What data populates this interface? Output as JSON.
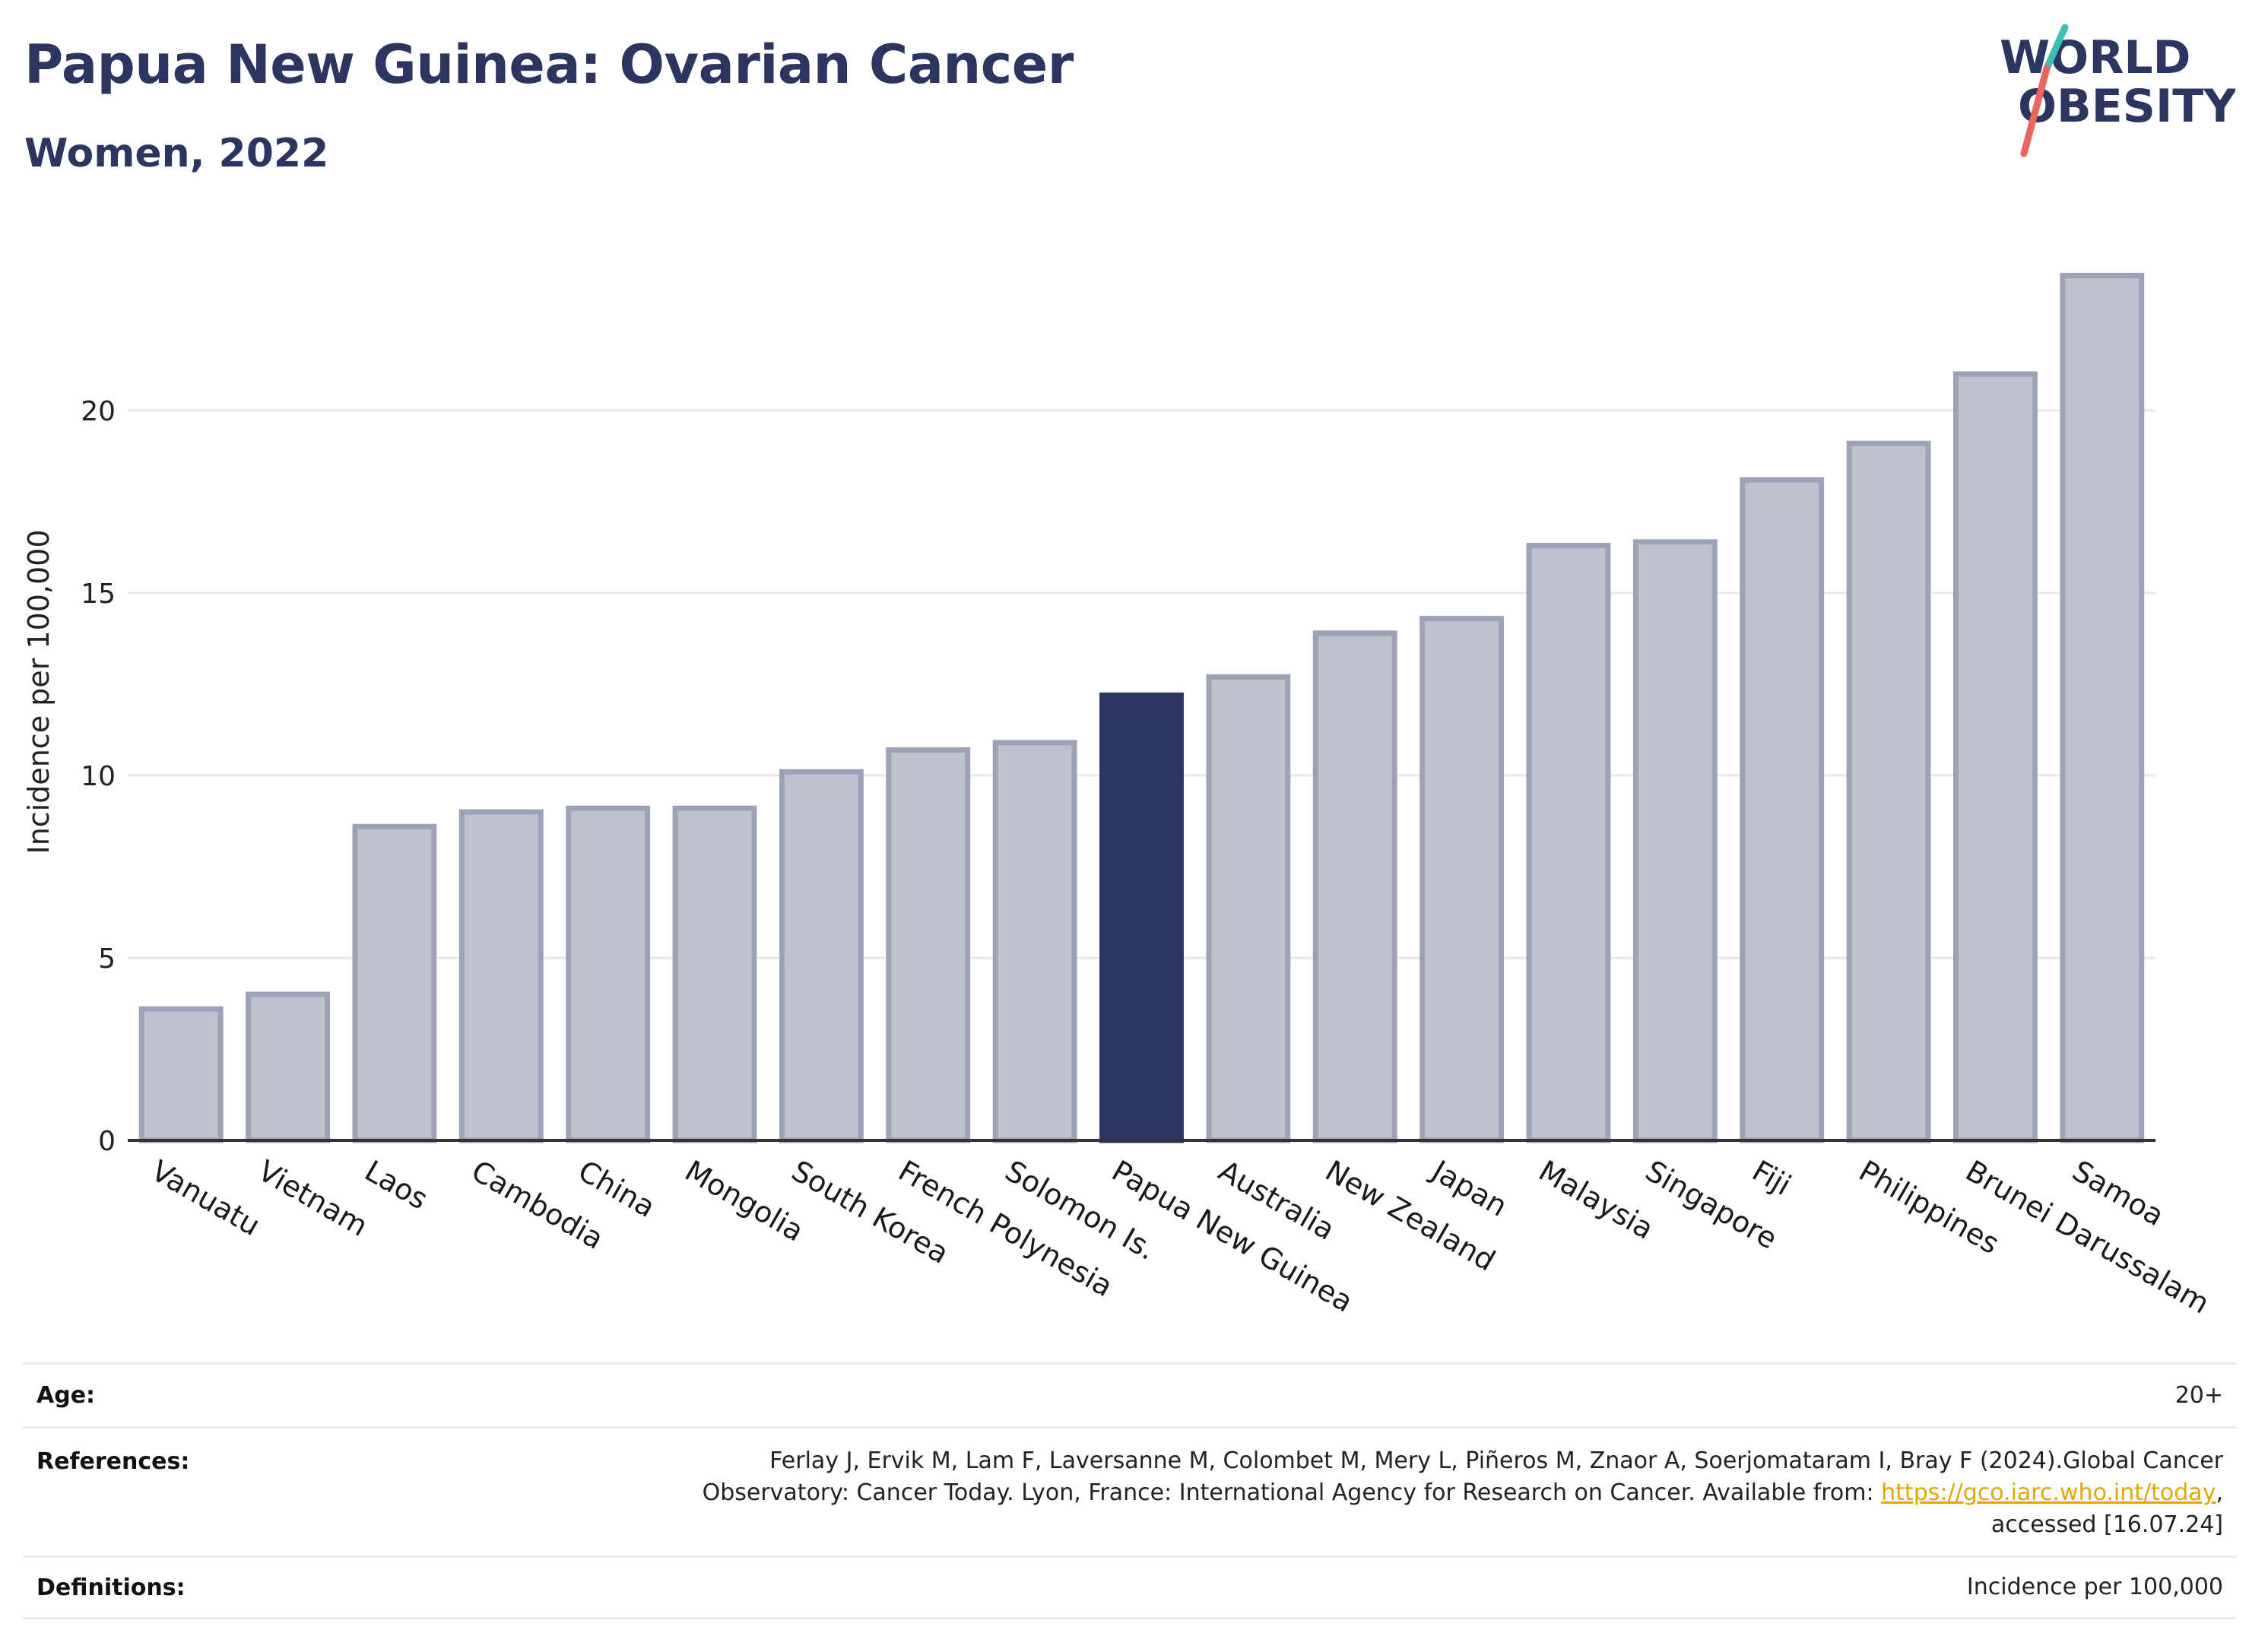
{
  "header": {
    "title": "Papua New Guinea: Ovarian Cancer",
    "subtitle": "Women, 2022"
  },
  "logo": {
    "line1": "WORLD",
    "line2": "OBESITY",
    "text_color": "#2b3560",
    "slash_colors": [
      "#3fbfb0",
      "#e8665a"
    ]
  },
  "chart_data": {
    "type": "bar",
    "categories": [
      "Vanuatu",
      "Vietnam",
      "Laos",
      "Cambodia",
      "China",
      "Mongolia",
      "South Korea",
      "French Polynesia",
      "Solomon Is.",
      "Papua New Guinea",
      "Australia",
      "New Zealand",
      "Japan",
      "Malaysia",
      "Singapore",
      "Fiji",
      "Philippines",
      "Brunei Darussalam",
      "Samoa"
    ],
    "values": [
      3.6,
      4.0,
      8.6,
      9.0,
      9.1,
      9.1,
      10.1,
      10.7,
      10.9,
      12.2,
      12.7,
      13.9,
      14.3,
      16.3,
      16.4,
      18.1,
      19.1,
      21.0,
      23.7
    ],
    "highlight": "Papua New Guinea",
    "ylabel": "Incidence per 100,000",
    "xlabel": "",
    "ylim": [
      0,
      25
    ],
    "yticks": [
      0,
      5,
      10,
      15,
      20
    ],
    "grid": true,
    "colors": {
      "bar_fill": "#bec1ce",
      "bar_stroke": "#9da2b7",
      "highlight": "#2b3560",
      "grid": "#e6e8ec",
      "axis": "#333333"
    }
  },
  "info_table": {
    "age_label": "Age:",
    "age_value": "20+",
    "references_label": "References:",
    "references_line1": "Ferlay J, Ervik M, Lam F, Laversanne M, Colombet M, Mery L, Piñeros M, Znaor A, Soerjomataram I, Bray F (2024).Global Cancer",
    "references_line2_prefix": "Observatory: Cancer Today. Lyon, France: International Agency for Research on Cancer. Available from: ",
    "references_link": "https://gco.iarc.who.int/today",
    "references_line2_suffix": ",",
    "references_line3": "accessed [16.07.24]",
    "definitions_label": "Definitions:",
    "definitions_value": "Incidence per 100,000",
    "link_color": "#e0a800"
  }
}
